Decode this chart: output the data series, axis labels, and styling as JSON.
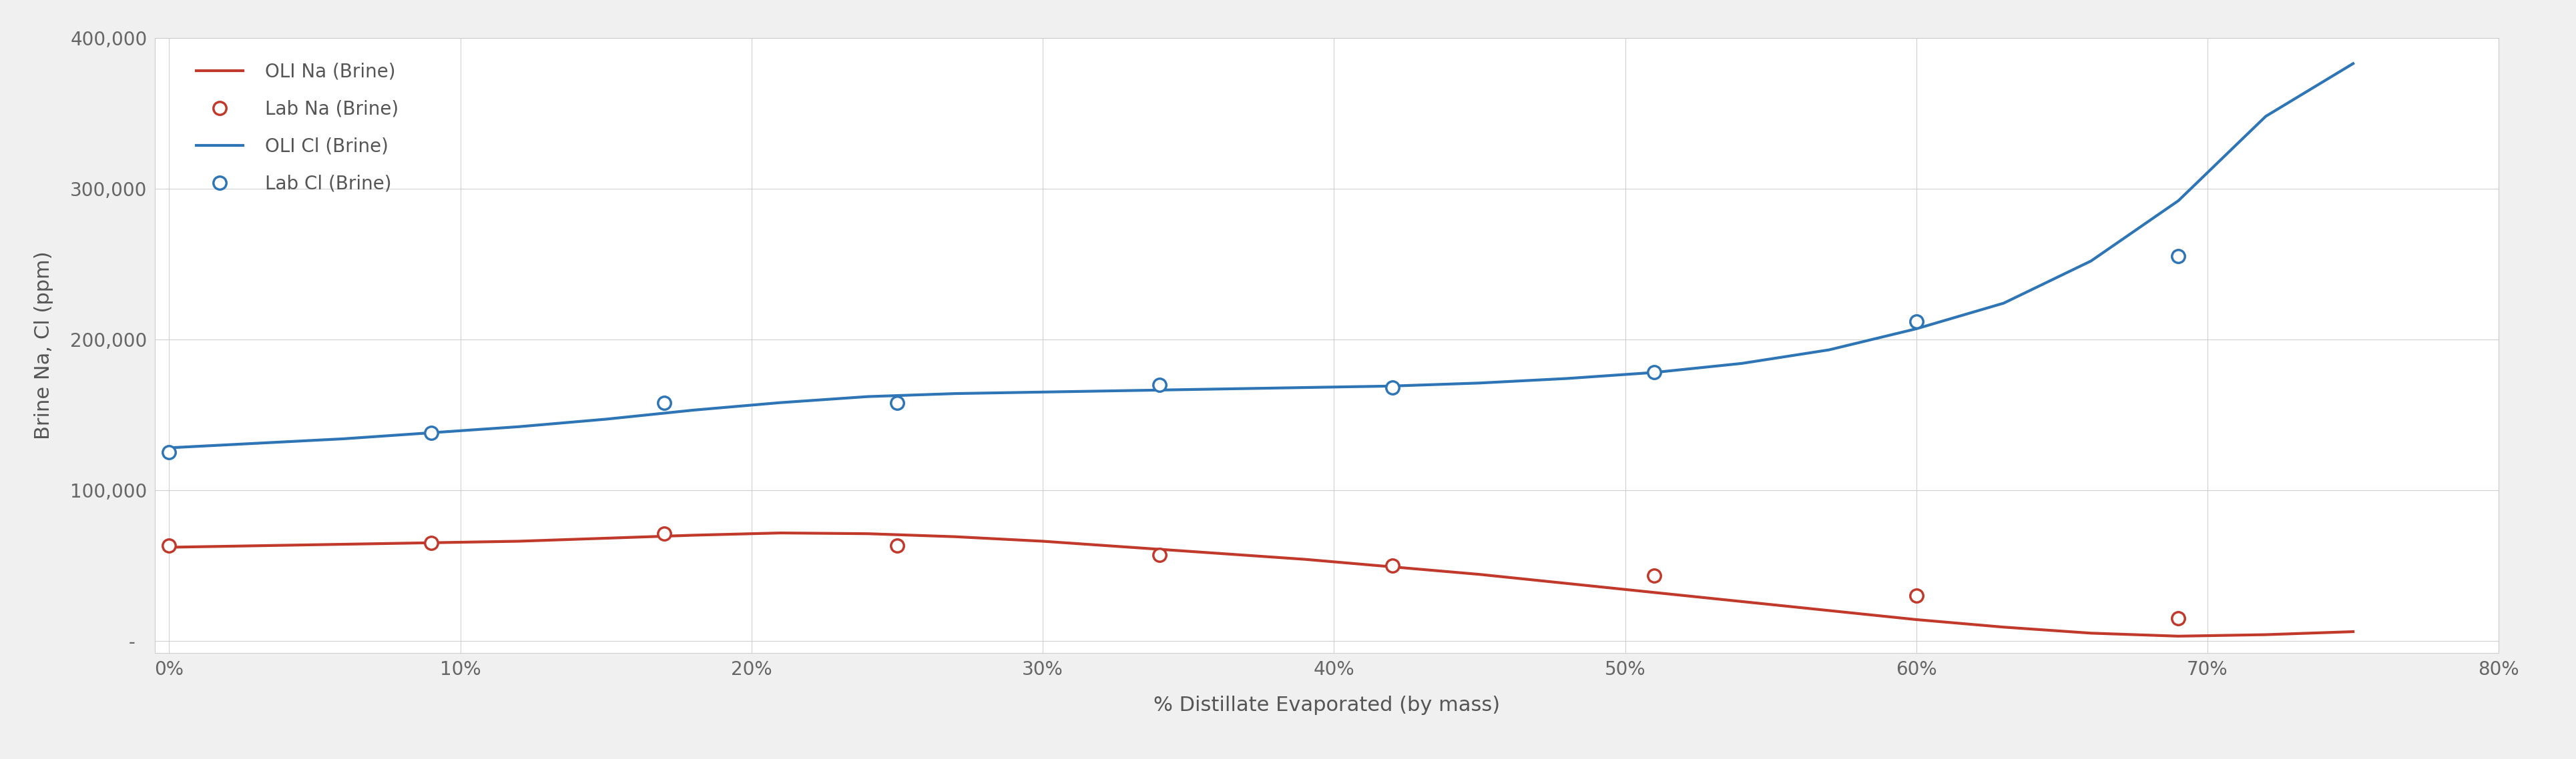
{
  "title": "",
  "xlabel": "% Distillate Evaporated (by mass)",
  "ylabel": "Brine Na, Cl (ppm)",
  "background_color": "#f0f0f0",
  "plot_bg_color": "#ffffff",
  "grid_color": "#d0d0d0",
  "xlim": [
    -0.005,
    0.8
  ],
  "ylim": [
    -8000,
    400000
  ],
  "yticks": [
    0,
    100000,
    200000,
    300000,
    400000
  ],
  "xticks": [
    0.0,
    0.1,
    0.2,
    0.3,
    0.4,
    0.5,
    0.6,
    0.7,
    0.8
  ],
  "oli_na_x": [
    0.0,
    0.03,
    0.06,
    0.09,
    0.12,
    0.15,
    0.18,
    0.21,
    0.24,
    0.27,
    0.3,
    0.33,
    0.36,
    0.39,
    0.42,
    0.45,
    0.48,
    0.51,
    0.54,
    0.57,
    0.6,
    0.63,
    0.66,
    0.69,
    0.72,
    0.75
  ],
  "oli_na_y": [
    62000,
    63000,
    64000,
    65000,
    66000,
    68000,
    70000,
    71500,
    71000,
    69000,
    66000,
    62000,
    58000,
    54000,
    49000,
    44000,
    38000,
    32000,
    26000,
    20000,
    14000,
    9000,
    5000,
    3000,
    4000,
    6000
  ],
  "lab_na_x": [
    0.0,
    0.09,
    0.17,
    0.25,
    0.34,
    0.42,
    0.51,
    0.6,
    0.69
  ],
  "lab_na_y": [
    63000,
    65000,
    71000,
    63000,
    57000,
    50000,
    43000,
    30000,
    15000
  ],
  "oli_cl_x": [
    0.0,
    0.03,
    0.06,
    0.09,
    0.12,
    0.15,
    0.18,
    0.21,
    0.24,
    0.27,
    0.3,
    0.33,
    0.36,
    0.39,
    0.42,
    0.45,
    0.48,
    0.51,
    0.54,
    0.57,
    0.6,
    0.63,
    0.66,
    0.69,
    0.72,
    0.75
  ],
  "oli_cl_y": [
    128000,
    131000,
    134000,
    138000,
    142000,
    147000,
    153000,
    158000,
    162000,
    164000,
    165000,
    166000,
    167000,
    168000,
    169000,
    171000,
    174000,
    178000,
    184000,
    193000,
    207000,
    224000,
    252000,
    292000,
    348000,
    383000
  ],
  "lab_cl_x": [
    0.0,
    0.09,
    0.17,
    0.25,
    0.34,
    0.42,
    0.51,
    0.6,
    0.69
  ],
  "lab_cl_y": [
    125000,
    138000,
    158000,
    158000,
    170000,
    168000,
    178000,
    212000,
    255000
  ],
  "oli_na_color": "#c0392b",
  "lab_na_color": "#c0392b",
  "oli_cl_color": "#2e75b6",
  "lab_cl_color": "#2e75b6",
  "legend_labels": [
    "OLI Na (Brine)",
    "Lab Na (Brine)",
    "OLI Cl (Brine)",
    "Lab Cl (Brine)"
  ],
  "linewidth": 3.0,
  "marker_size": 14,
  "marker_edge_width": 2.5,
  "label_font_size": 22,
  "tick_font_size": 20,
  "legend_font_size": 20
}
